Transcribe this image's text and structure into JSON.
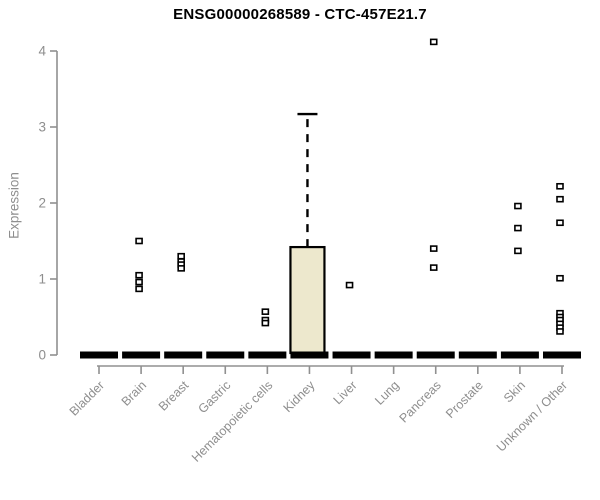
{
  "title": "ENSG00000268589 - CTC-457E21.7",
  "chart_data": {
    "type": "box",
    "title": "ENSG00000268589 - CTC-457E21.7",
    "xlabel": "",
    "ylabel": "Expression",
    "ylim": [
      0,
      4
    ],
    "yticks": [
      0,
      1,
      2,
      3,
      4
    ],
    "grid": false,
    "legend": "none",
    "categories": [
      "Bladder",
      "Brain",
      "Breast",
      "Gastric",
      "Hematopoietic cells",
      "Kidney",
      "Liver",
      "Lung",
      "Pancreas",
      "Prostate",
      "Skin",
      "Unknown / Other"
    ],
    "boxes": [
      {
        "category": "Bladder",
        "q1": 0,
        "median": 0,
        "q3": 0,
        "whisker_low": 0,
        "whisker_high": 0,
        "outliers": []
      },
      {
        "category": "Brain",
        "q1": 0,
        "median": 0,
        "q3": 0,
        "whisker_low": 0,
        "whisker_high": 0,
        "outliers": [
          1.5,
          1.05,
          0.96,
          0.87
        ]
      },
      {
        "category": "Breast",
        "q1": 0,
        "median": 0,
        "q3": 0,
        "whisker_low": 0,
        "whisker_high": 0,
        "outliers": [
          1.3,
          1.23,
          1.19,
          1.14
        ]
      },
      {
        "category": "Gastric",
        "q1": 0,
        "median": 0,
        "q3": 0,
        "whisker_low": 0,
        "whisker_high": 0,
        "outliers": []
      },
      {
        "category": "Hematopoietic cells",
        "q1": 0,
        "median": 0,
        "q3": 0,
        "whisker_low": 0,
        "whisker_high": 0,
        "outliers": [
          0.57,
          0.46,
          0.42
        ]
      },
      {
        "category": "Kidney",
        "q1": 0,
        "median": 0,
        "q3": 1.42,
        "whisker_low": 0,
        "whisker_high": 3.17,
        "outliers": []
      },
      {
        "category": "Liver",
        "q1": 0,
        "median": 0,
        "q3": 0,
        "whisker_low": 0,
        "whisker_high": 0,
        "outliers": [
          0.92
        ]
      },
      {
        "category": "Lung",
        "q1": 0,
        "median": 0,
        "q3": 0,
        "whisker_low": 0,
        "whisker_high": 0,
        "outliers": []
      },
      {
        "category": "Pancreas",
        "q1": 0,
        "median": 0,
        "q3": 0,
        "whisker_low": 0,
        "whisker_high": 0,
        "outliers": [
          4.12,
          1.4,
          1.15
        ]
      },
      {
        "category": "Prostate",
        "q1": 0,
        "median": 0,
        "q3": 0,
        "whisker_low": 0,
        "whisker_high": 0,
        "outliers": []
      },
      {
        "category": "Skin",
        "q1": 0,
        "median": 0,
        "q3": 0,
        "whisker_low": 0,
        "whisker_high": 0,
        "outliers": [
          1.96,
          1.67,
          1.37
        ]
      },
      {
        "category": "Unknown / Other",
        "q1": 0,
        "median": 0,
        "q3": 0,
        "whisker_low": 0,
        "whisker_high": 0,
        "outliers": [
          2.22,
          2.05,
          1.74,
          1.01,
          0.55,
          0.5,
          0.46,
          0.41,
          0.36,
          0.31
        ]
      }
    ],
    "colors": {
      "box_fill": "#ede8cd",
      "box_stroke": "#000000",
      "zero_bar": "#000000",
      "axis": "#909090",
      "tick_label": "#8e8e8e",
      "title": "#000000",
      "outlier_fill": "#ffffff",
      "outlier_stroke": "#000000"
    }
  }
}
